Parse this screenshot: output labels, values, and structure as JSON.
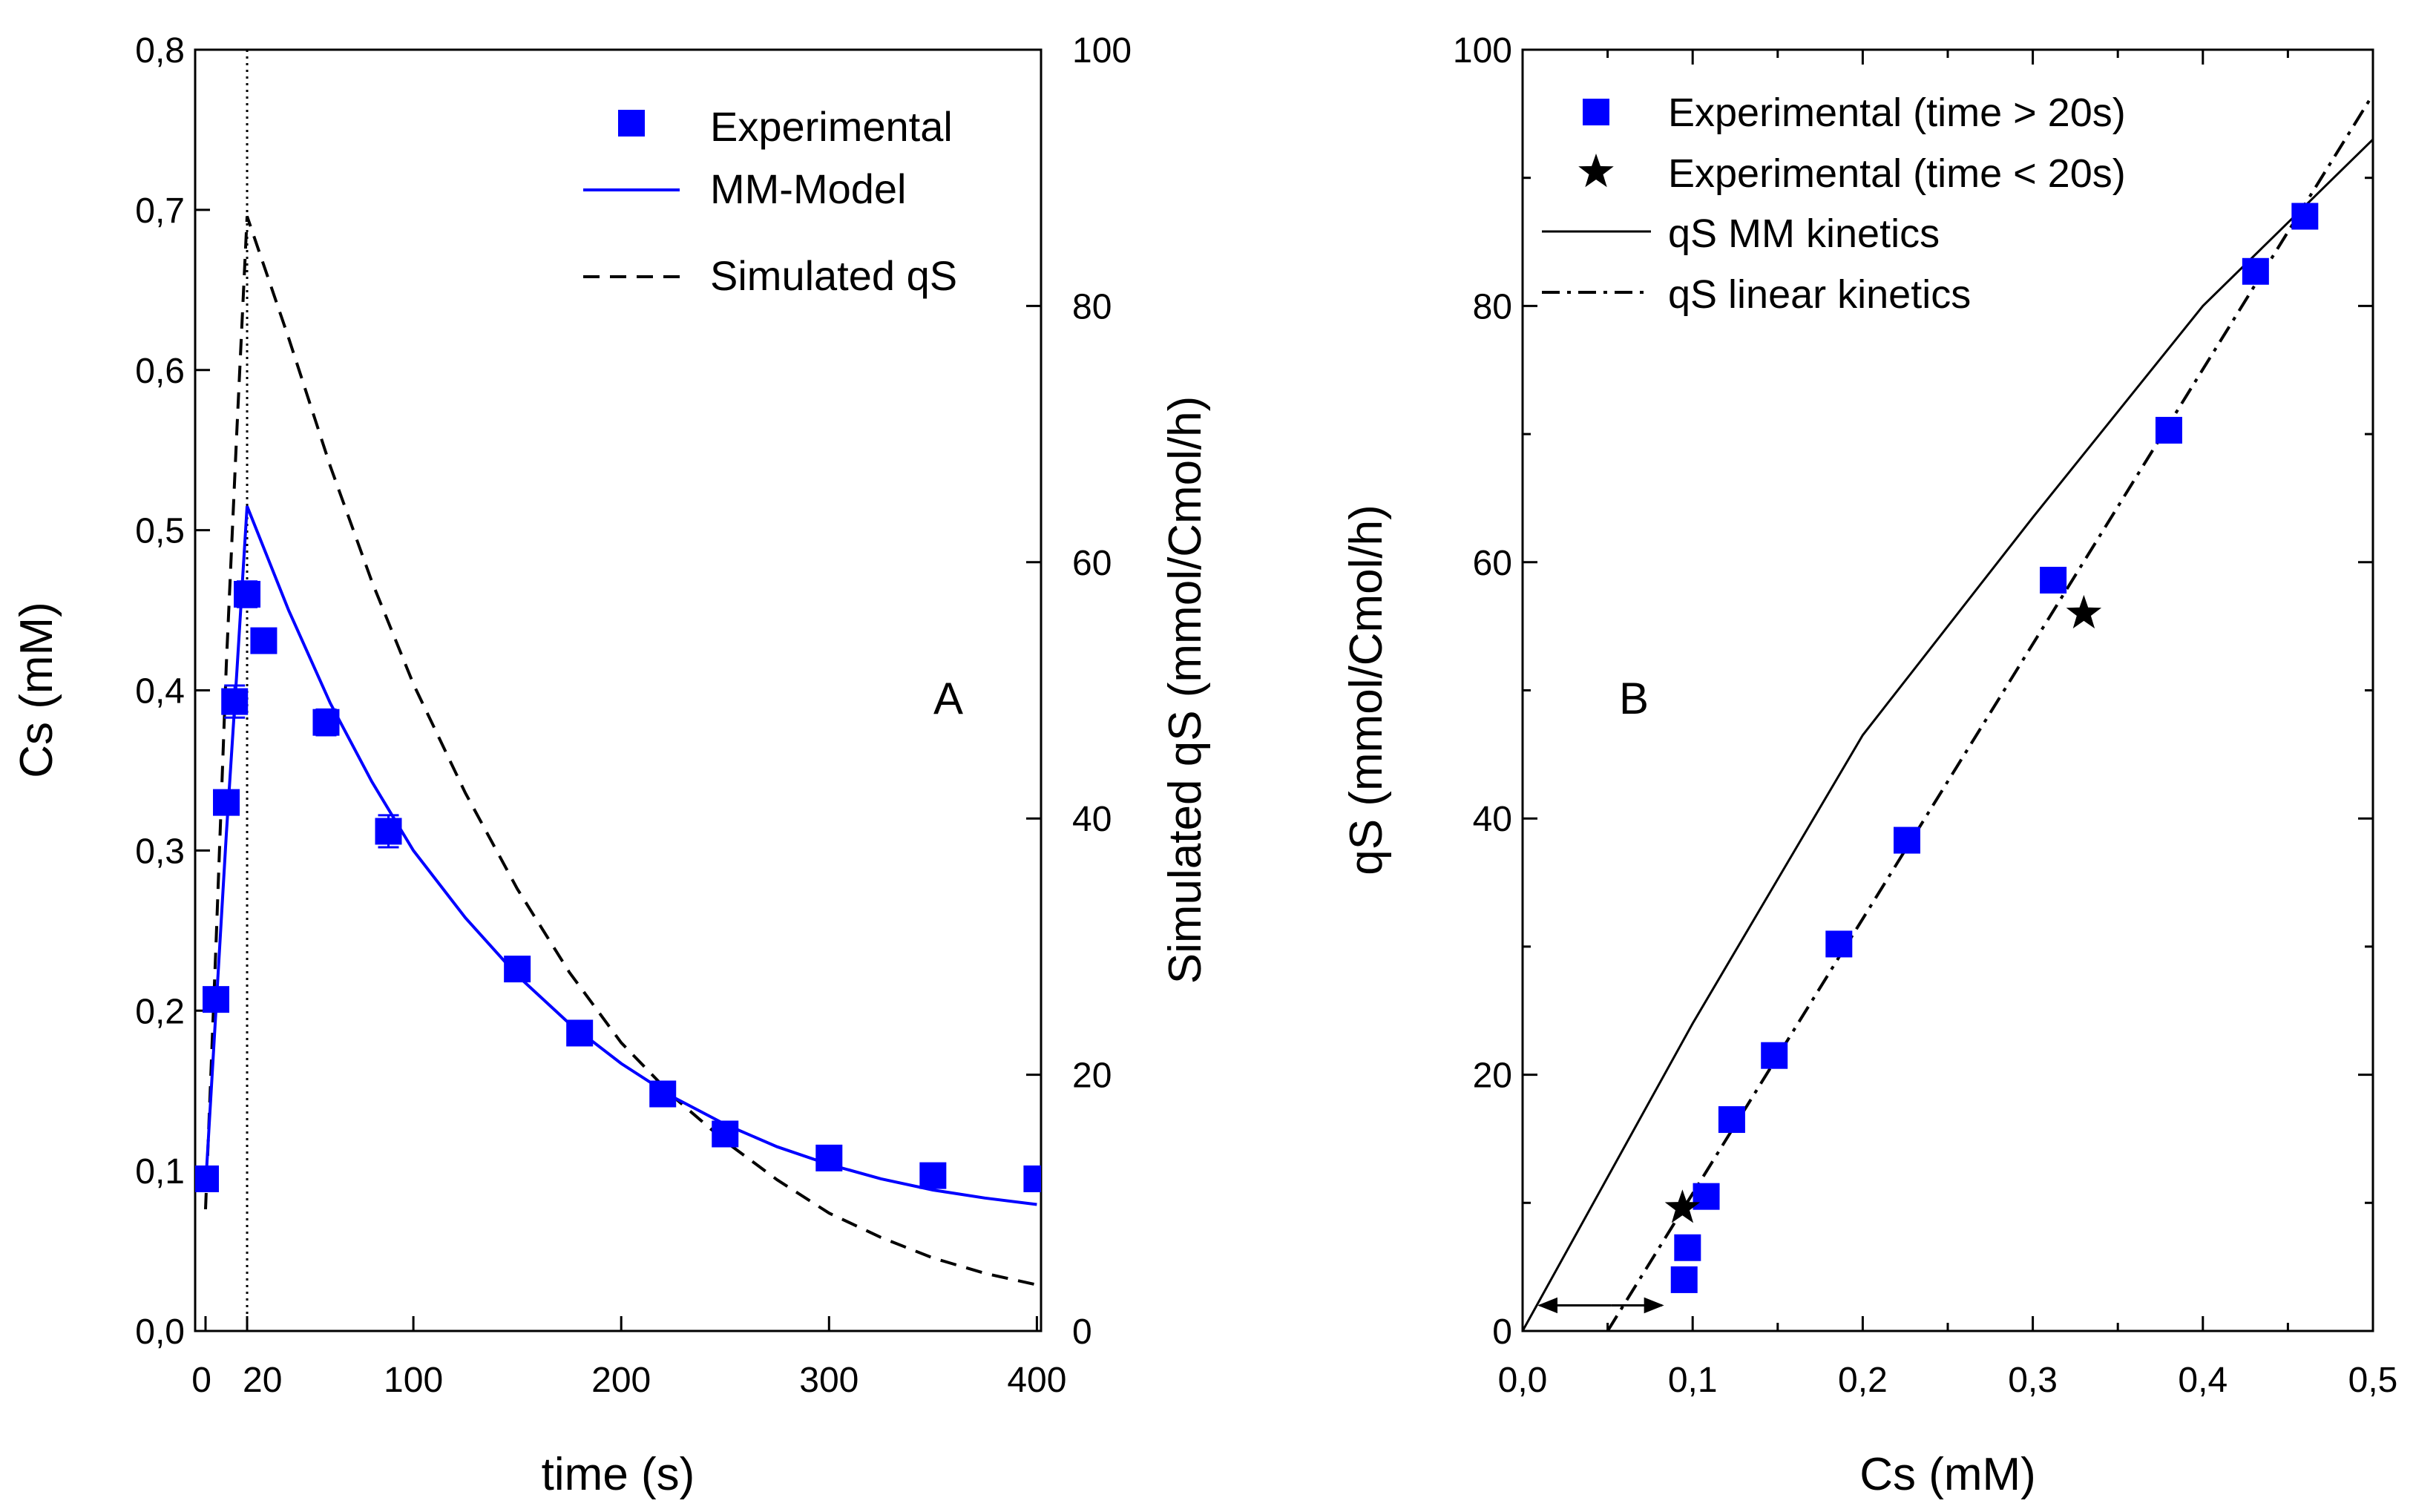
{
  "chart_data": [
    {
      "type": "scatter",
      "panel_label": "A",
      "xlabel": "time (s)",
      "ylabel": "Cs (mM)",
      "y2label": "Simulated qS (mmol/Cmol/h)",
      "xlim": [
        -5,
        402
      ],
      "ylim": [
        0,
        0.8
      ],
      "y2lim": [
        0,
        100
      ],
      "x_ticks": [
        {
          "v": 0,
          "label": "0"
        },
        {
          "v": 20,
          "label": "20"
        },
        {
          "v": 100,
          "label": "100"
        },
        {
          "v": 200,
          "label": "200"
        },
        {
          "v": 300,
          "label": "300"
        },
        {
          "v": 400,
          "label": "400"
        }
      ],
      "y_ticks": [
        {
          "v": 0.0,
          "label": "0,0"
        },
        {
          "v": 0.1,
          "label": "0,1"
        },
        {
          "v": 0.2,
          "label": "0,2"
        },
        {
          "v": 0.3,
          "label": "0,3"
        },
        {
          "v": 0.4,
          "label": "0,4"
        },
        {
          "v": 0.5,
          "label": "0,5"
        },
        {
          "v": 0.6,
          "label": "0,6"
        },
        {
          "v": 0.7,
          "label": "0,7"
        },
        {
          "v": 0.8,
          "label": "0,8"
        }
      ],
      "y2_ticks": [
        {
          "v": 0,
          "label": "0"
        },
        {
          "v": 20,
          "label": "20"
        },
        {
          "v": 40,
          "label": "40"
        },
        {
          "v": 60,
          "label": "60"
        },
        {
          "v": 80,
          "label": "80"
        },
        {
          "v": 100,
          "label": "100"
        }
      ],
      "vline_x": 20,
      "legend": {
        "position": "top-right",
        "experimental": "Experimental",
        "model": "MM-Model",
        "simulated": "Simulated qS"
      },
      "series": [
        {
          "name": "Experimental",
          "kind": "markers",
          "color": "#0000ff",
          "points": [
            {
              "x": 0,
              "y": 0.095
            },
            {
              "x": 5,
              "y": 0.207
            },
            {
              "x": 10,
              "y": 0.33,
              "err": 0.006
            },
            {
              "x": 14,
              "y": 0.393,
              "err": 0.01
            },
            {
              "x": 20,
              "y": 0.46,
              "err": 0.008
            },
            {
              "x": 28,
              "y": 0.431,
              "err": 0.005
            },
            {
              "x": 58,
              "y": 0.38,
              "err": 0.008
            },
            {
              "x": 88,
              "y": 0.312,
              "err": 0.01
            },
            {
              "x": 150,
              "y": 0.226,
              "err": 0.004
            },
            {
              "x": 180,
              "y": 0.186,
              "err": 0.005
            },
            {
              "x": 220,
              "y": 0.148,
              "err": 0.005
            },
            {
              "x": 250,
              "y": 0.123,
              "err": 0.004
            },
            {
              "x": 300,
              "y": 0.108,
              "err": 0.003
            },
            {
              "x": 350,
              "y": 0.097,
              "err": 0.003
            },
            {
              "x": 400,
              "y": 0.095,
              "err": 0.003
            }
          ]
        },
        {
          "name": "MM-Model",
          "kind": "line",
          "color": "#0000ff",
          "x": [
            0,
            5,
            10,
            15,
            20,
            40,
            60,
            80,
            100,
            125,
            150,
            175,
            200,
            225,
            250,
            275,
            300,
            325,
            350,
            375,
            400
          ],
          "y": [
            0.09,
            0.2,
            0.31,
            0.41,
            0.515,
            0.45,
            0.392,
            0.343,
            0.3,
            0.258,
            0.222,
            0.192,
            0.167,
            0.146,
            0.129,
            0.115,
            0.104,
            0.095,
            0.088,
            0.083,
            0.079
          ]
        },
        {
          "name": "Simulated qS",
          "kind": "dashed-line",
          "axis": "right",
          "color": "#000000",
          "x": [
            0,
            5,
            10,
            15,
            20,
            40,
            60,
            80,
            100,
            125,
            150,
            175,
            200,
            225,
            250,
            275,
            300,
            325,
            350,
            375,
            400
          ],
          "y": [
            9.5,
            30,
            52,
            70,
            87,
            77.5,
            67.5,
            58.5,
            50.5,
            42,
            34.5,
            28,
            22.5,
            18.3,
            14.8,
            11.8,
            9.2,
            7.3,
            5.7,
            4.5,
            3.6
          ]
        }
      ]
    },
    {
      "type": "scatter",
      "panel_label": "B",
      "xlabel": "Cs (mM)",
      "ylabel": "qS (mmol/Cmol/h)",
      "xlim": [
        0,
        0.5
      ],
      "ylim": [
        0,
        100
      ],
      "x_ticks": [
        {
          "v": 0.0,
          "label": "0,0"
        },
        {
          "v": 0.1,
          "label": "0,1"
        },
        {
          "v": 0.2,
          "label": "0,2"
        },
        {
          "v": 0.3,
          "label": "0,3"
        },
        {
          "v": 0.4,
          "label": "0,4"
        },
        {
          "v": 0.5,
          "label": "0,5"
        }
      ],
      "y_ticks": [
        {
          "v": 0,
          "label": "0"
        },
        {
          "v": 20,
          "label": "20"
        },
        {
          "v": 40,
          "label": "40"
        },
        {
          "v": 60,
          "label": "60"
        },
        {
          "v": 80,
          "label": "80"
        },
        {
          "v": 100,
          "label": "100"
        }
      ],
      "legend": {
        "position": "top-left",
        "experimental_late": "Experimental (time > 20s)",
        "experimental_early": "Experimental (time < 20s)",
        "mm": "qS MM kinetics",
        "linear": "qS linear kinetics"
      },
      "arrow": {
        "from_x": 0.052,
        "to_x": 0.01,
        "right_to_x": 0.082,
        "y": 2
      },
      "series": [
        {
          "name": "Experimental (time > 20s)",
          "kind": "markers",
          "color": "#0000ff",
          "points": [
            {
              "x": 0.095,
              "y": 4
            },
            {
              "x": 0.097,
              "y": 6.5
            },
            {
              "x": 0.108,
              "y": 10.5
            },
            {
              "x": 0.123,
              "y": 16.5
            },
            {
              "x": 0.148,
              "y": 21.5
            },
            {
              "x": 0.186,
              "y": 30.2
            },
            {
              "x": 0.226,
              "y": 38.3
            },
            {
              "x": 0.312,
              "y": 58.6
            },
            {
              "x": 0.38,
              "y": 70.3
            },
            {
              "x": 0.431,
              "y": 82.7
            },
            {
              "x": 0.46,
              "y": 87
            }
          ]
        },
        {
          "name": "Experimental (time < 20s)",
          "kind": "star-markers",
          "color": "#000000",
          "points": [
            {
              "x": 0.094,
              "y": 9.6
            },
            {
              "x": 0.33,
              "y": 56
            }
          ]
        },
        {
          "name": "qS MM kinetics",
          "kind": "line",
          "color": "#000000",
          "x": [
            0,
            0.1,
            0.2,
            0.3,
            0.4,
            0.5
          ],
          "y": [
            0,
            24,
            46.5,
            63.5,
            80,
            93
          ]
        },
        {
          "name": "qS linear kinetics",
          "kind": "dashdot-line",
          "color": "#000000",
          "x": [
            0.05,
            0.5
          ],
          "y": [
            0,
            96.5
          ]
        }
      ]
    }
  ]
}
